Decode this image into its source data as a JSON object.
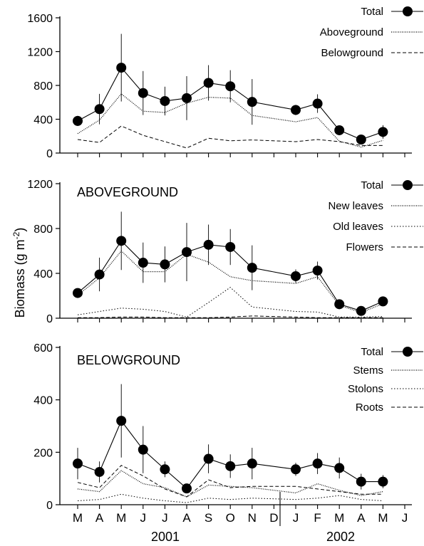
{
  "figure": {
    "ylabel": "Biomass (g m-2)",
    "ylabel_main": "Biomass (g m",
    "ylabel_sup": "-2",
    "ylabel_close": ")"
  },
  "x_axis": {
    "months": [
      "M",
      "A",
      "M",
      "J",
      "J",
      "A",
      "S",
      "O",
      "N",
      "D",
      "J",
      "F",
      "M",
      "A",
      "M",
      "J"
    ],
    "years": [
      "2001",
      "2002"
    ]
  },
  "chart_data": [
    {
      "type": "line",
      "title": "",
      "xlabel": "",
      "ylabel": "Biomass (g m-2)",
      "ylim": [
        0,
        1600
      ],
      "yticks": [
        "0",
        "400",
        "800",
        "1200",
        "1600"
      ],
      "legend_position": "top-right",
      "x": [
        0,
        1,
        2,
        3,
        4,
        5,
        6,
        7,
        8,
        9,
        10,
        11,
        12,
        13,
        14
      ],
      "series": [
        {
          "name": "Total",
          "style": "dot-line",
          "values": [
            380,
            520,
            1010,
            710,
            615,
            650,
            830,
            790,
            605,
            510,
            585,
            270,
            160,
            250
          ],
          "x": [
            0,
            1,
            2,
            3,
            4,
            5,
            6,
            7,
            8,
            10,
            11,
            12,
            13,
            14
          ],
          "errors": [
            60,
            180,
            400,
            260,
            170,
            260,
            210,
            190,
            270,
            60,
            110,
            40,
            50,
            80
          ]
        },
        {
          "name": "Aboveground",
          "style": "dotted",
          "x": [
            0,
            1,
            2,
            3,
            4,
            5,
            6,
            7,
            8,
            10,
            11,
            12,
            13,
            14
          ],
          "values": [
            230,
            390,
            700,
            495,
            480,
            590,
            660,
            650,
            445,
            370,
            420,
            140,
            70,
            150
          ]
        },
        {
          "name": "Belowground",
          "style": "dashed",
          "x": [
            0,
            1,
            2,
            3,
            4,
            5,
            6,
            7,
            8,
            10,
            11,
            12,
            13,
            14
          ],
          "values": [
            160,
            125,
            320,
            210,
            135,
            60,
            175,
            145,
            155,
            135,
            160,
            135,
            90,
            90
          ]
        }
      ]
    },
    {
      "type": "line",
      "title": "ABOVEGROUND",
      "xlabel": "",
      "ylabel": "",
      "ylim": [
        0,
        1200
      ],
      "yticks": [
        "0",
        "400",
        "800",
        "1200"
      ],
      "legend_position": "top-right",
      "series": [
        {
          "name": "Total",
          "style": "dot-line",
          "x": [
            0,
            1,
            2,
            3,
            4,
            5,
            6,
            7,
            8,
            10,
            11,
            12,
            13,
            14
          ],
          "values": [
            225,
            390,
            690,
            495,
            480,
            590,
            655,
            635,
            450,
            375,
            425,
            125,
            65,
            150
          ],
          "errors": [
            40,
            150,
            260,
            180,
            160,
            260,
            180,
            160,
            200,
            60,
            80,
            30,
            40,
            40
          ]
        },
        {
          "name": "New leaves",
          "style": "dotted",
          "x": [
            0,
            1,
            2,
            3,
            4,
            5,
            6,
            7,
            8,
            10,
            11,
            12,
            13,
            14
          ],
          "values": [
            205,
            360,
            600,
            415,
            415,
            570,
            500,
            370,
            335,
            310,
            370,
            115,
            50,
            130
          ]
        },
        {
          "name": "Old leaves",
          "style": "dotted-fine",
          "x": [
            0,
            1,
            2,
            3,
            4,
            5,
            6,
            7,
            8,
            10,
            11,
            12,
            13,
            14
          ],
          "values": [
            30,
            60,
            90,
            80,
            60,
            10,
            140,
            275,
            100,
            60,
            55,
            10,
            10,
            15
          ]
        },
        {
          "name": "Flowers",
          "style": "dashed",
          "x": [
            0,
            1,
            2,
            3,
            4,
            5,
            6,
            7,
            8,
            10,
            11,
            12,
            13,
            14
          ],
          "values": [
            5,
            5,
            10,
            10,
            5,
            5,
            5,
            10,
            20,
            10,
            5,
            5,
            5,
            5
          ]
        }
      ]
    },
    {
      "type": "line",
      "title": "BELOWGROUND",
      "xlabel": "",
      "ylabel": "",
      "ylim": [
        0,
        600
      ],
      "yticks": [
        "0",
        "200",
        "400",
        "600"
      ],
      "legend_position": "top-right",
      "series": [
        {
          "name": "Total",
          "style": "dot-line",
          "x": [
            0,
            1,
            2,
            3,
            4,
            5,
            6,
            7,
            8,
            10,
            11,
            12,
            13,
            14
          ],
          "values": [
            157,
            125,
            320,
            210,
            135,
            62,
            175,
            147,
            157,
            135,
            157,
            140,
            88,
            88
          ],
          "errors": [
            60,
            40,
            140,
            90,
            30,
            15,
            55,
            45,
            60,
            25,
            40,
            40,
            30,
            25
          ]
        },
        {
          "name": "Stems",
          "style": "dotted",
          "x": [
            0,
            1,
            2,
            3,
            4,
            5,
            6,
            7,
            8,
            10,
            11,
            12,
            13,
            14
          ],
          "values": [
            60,
            50,
            130,
            80,
            65,
            30,
            75,
            70,
            65,
            45,
            80,
            55,
            35,
            50
          ]
        },
        {
          "name": "Stolons",
          "style": "dotted-fine",
          "x": [
            0,
            1,
            2,
            3,
            4,
            5,
            6,
            7,
            8,
            10,
            11,
            12,
            13,
            14
          ],
          "values": [
            15,
            20,
            40,
            25,
            15,
            8,
            25,
            20,
            25,
            20,
            25,
            35,
            20,
            15
          ]
        },
        {
          "name": "Roots",
          "style": "dashed",
          "x": [
            0,
            1,
            2,
            3,
            4,
            5,
            6,
            7,
            8,
            10,
            11,
            12,
            13,
            14
          ],
          "values": [
            85,
            65,
            150,
            110,
            60,
            30,
            95,
            65,
            70,
            70,
            60,
            50,
            40,
            40
          ]
        }
      ]
    }
  ]
}
